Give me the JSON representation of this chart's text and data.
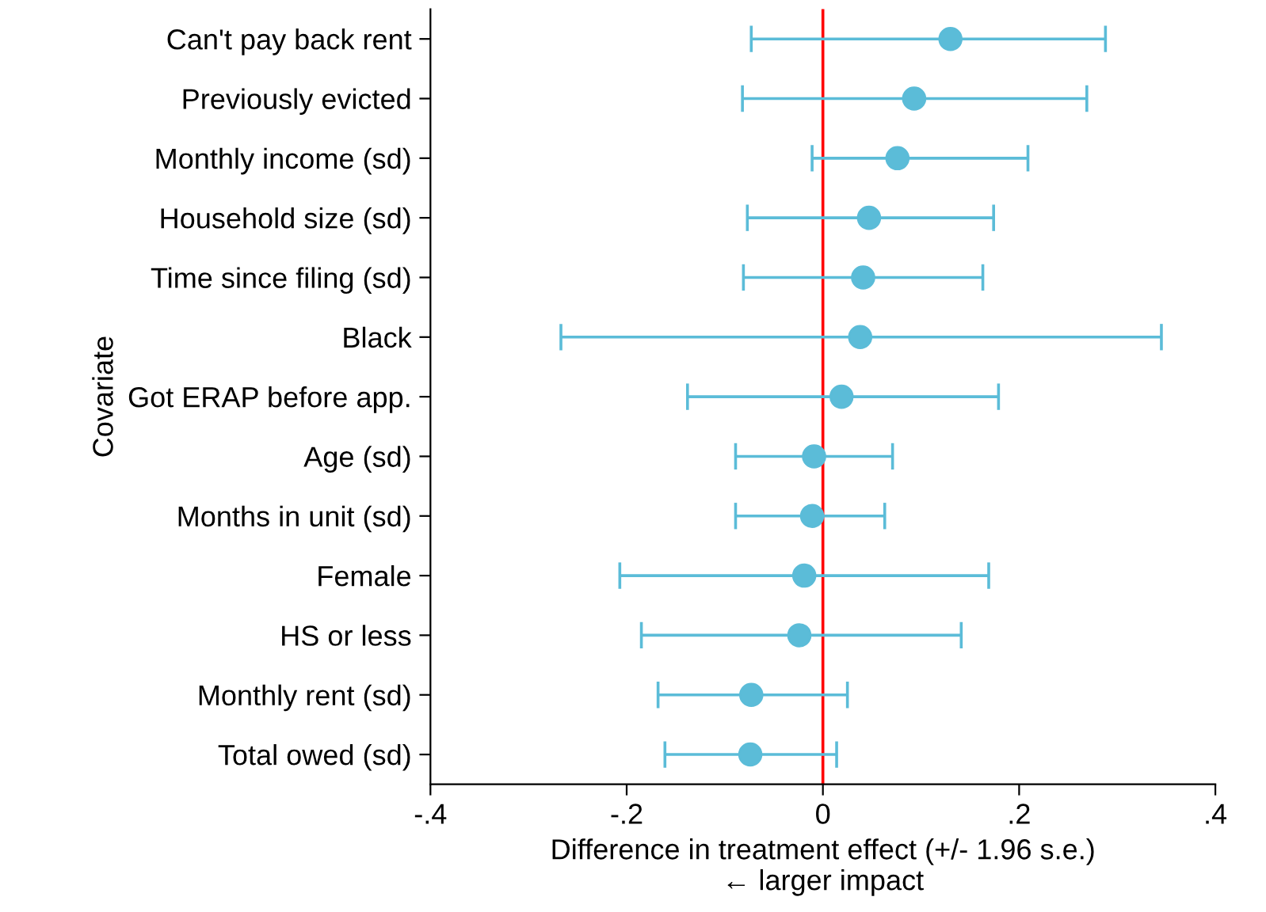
{
  "chart_data": {
    "type": "scatter",
    "orientation": "horizontal",
    "xlabel": "Difference in treatment effect (+/- 1.96 s.e.)\n← larger impact",
    "ylabel": "Covariate",
    "categories": [
      "Can't pay back rent",
      "Previously evicted",
      "Monthly income (sd)",
      "Household size (sd)",
      "Time since filing (sd)",
      "Black",
      "Got ERAP before app.",
      "Age (sd)",
      "Months in unit (sd)",
      "Female",
      "HS or less",
      "Monthly rent (sd)",
      "Total owed (sd)"
    ],
    "values": [
      0.13,
      0.093,
      0.076,
      0.047,
      0.041,
      0.038,
      0.019,
      -0.009,
      -0.011,
      -0.019,
      -0.024,
      -0.073,
      -0.074
    ],
    "errors": [
      [
        -0.073,
        0.288
      ],
      [
        -0.082,
        0.269
      ],
      [
        -0.011,
        0.209
      ],
      [
        -0.077,
        0.174
      ],
      [
        -0.081,
        0.163
      ],
      [
        -0.267,
        0.345
      ],
      [
        -0.138,
        0.179
      ],
      [
        -0.089,
        0.071
      ],
      [
        -0.089,
        0.063
      ],
      [
        -0.207,
        0.169
      ],
      [
        -0.185,
        0.141
      ],
      [
        -0.168,
        0.025
      ],
      [
        -0.161,
        0.014
      ]
    ],
    "color": "#5bbcd8",
    "marker": "circle",
    "grid": false,
    "legend": false,
    "xlim": [
      -0.4,
      0.4
    ],
    "xticks": [
      {
        "value": -0.4,
        "label": "-.4"
      },
      {
        "value": -0.2,
        "label": "-.2"
      },
      0,
      {
        "value": 0.2,
        "label": ".2"
      },
      {
        "value": 0.4,
        "label": ".4"
      }
    ],
    "ref_lines": [
      {
        "axis": "x",
        "value": 0,
        "color": "#ff0000",
        "line_style": "solid"
      }
    ]
  }
}
